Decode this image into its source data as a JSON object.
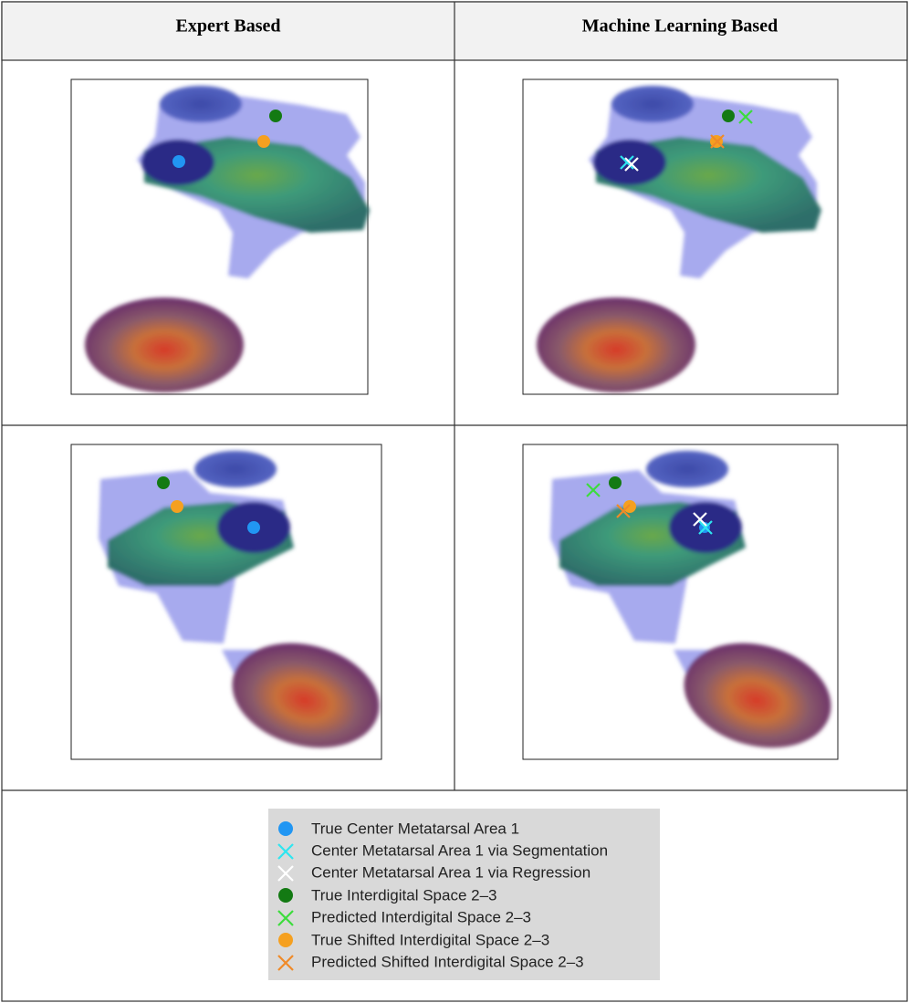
{
  "header": {
    "columns": [
      "Expert Based",
      "Machine Learning Based"
    ]
  },
  "legend": {
    "items": [
      "True Center Metatarsal Area 1",
      "Center Metatarsal Area 1 via Segmentation",
      "Center Metatarsal Area 1 via Regression",
      "True Interdigital Space 2–3",
      "Predicted Interdigital Space 2–3",
      "True Shifted Interdigital Space 2–3",
      "Predicted Shifted Interdigital Space 2–3"
    ]
  }
}
